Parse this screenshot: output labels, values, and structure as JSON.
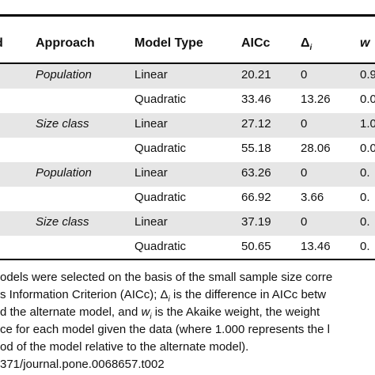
{
  "table": {
    "header": [
      "d",
      "Approach",
      "Model Type",
      "AICc",
      {
        "symbol": "Δ",
        "sub": "i"
      },
      "w"
    ],
    "rows": [
      [
        "Population",
        "Linear",
        "20.21",
        "0",
        "0.9"
      ],
      [
        "",
        "Quadratic",
        "33.46",
        "13.26",
        "0.0"
      ],
      [
        "Size class",
        "Linear",
        "27.12",
        "0",
        "1.0"
      ],
      [
        "",
        "Quadratic",
        "55.18",
        "28.06",
        "0.0"
      ],
      [
        "Population",
        "Linear",
        "63.26",
        "0",
        "0."
      ],
      [
        "",
        "Quadratic",
        "66.92",
        "3.66",
        "0."
      ],
      [
        "Size class",
        "Linear",
        "37.19",
        "0",
        "0."
      ],
      [
        "",
        "Quadratic",
        "50.65",
        "13.46",
        "0."
      ]
    ]
  },
  "footnote": [
    [
      "odels were selected on the basis of the small sample size corre"
    ],
    [
      "s Information Criterion (AICc); Δ",
      "i",
      " is the difference in AICc betw"
    ],
    [
      "d the alternate model, and ",
      "w",
      "i",
      " is the Akaike weight, the weight"
    ],
    [
      "ce for each model given the data (where 1.000 represents the l"
    ],
    [
      "od of the model relative to the alternate model)."
    ],
    [
      "371/journal.pone.0068657.t002"
    ]
  ]
}
